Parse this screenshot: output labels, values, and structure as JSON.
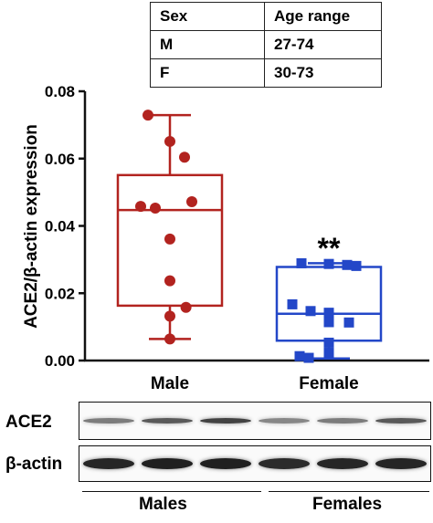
{
  "table": {
    "rows": [
      [
        "Sex",
        "Age range"
      ],
      [
        "M",
        "27-74"
      ],
      [
        "F",
        "30-73"
      ]
    ]
  },
  "chart_data": {
    "type": "box",
    "ylabel": "ACE2/β-actin expression",
    "ylim": [
      0,
      0.08
    ],
    "yticks": [
      "0.00",
      "0.02",
      "0.04",
      "0.06",
      "0.08"
    ],
    "categories": [
      "Male",
      "Female"
    ],
    "significance": "**",
    "series": [
      {
        "name": "Male",
        "color": "#b2231f",
        "marker": "circle",
        "box": {
          "min": 0.0064,
          "q1": 0.0163,
          "median": 0.0447,
          "q3": 0.0551,
          "max": 0.0729
        },
        "points": [
          0.0729,
          0.0651,
          0.0604,
          0.0472,
          0.0458,
          0.0453,
          0.0361,
          0.0237,
          0.0158,
          0.0132,
          0.0064
        ]
      },
      {
        "name": "Female",
        "color": "#2347c8",
        "marker": "square",
        "box": {
          "min": 0.0006,
          "q1": 0.0059,
          "median": 0.0139,
          "q3": 0.0278,
          "max": 0.0289
        },
        "points": [
          0.0289,
          0.0287,
          0.0284,
          0.0281,
          0.0167,
          0.0147,
          0.0142,
          0.0114,
          0.0113,
          0.0053,
          0.0023,
          0.0013,
          0.0008
        ]
      }
    ]
  },
  "blot": {
    "rows": [
      {
        "label": "ACE2",
        "intensities": [
          0.55,
          0.7,
          0.8,
          0.5,
          0.55,
          0.7
        ]
      },
      {
        "label": "β-actin",
        "intensities": [
          0.92,
          0.95,
          0.95,
          0.9,
          0.92,
          0.93
        ]
      }
    ],
    "groups": [
      "Males",
      "Females"
    ]
  }
}
